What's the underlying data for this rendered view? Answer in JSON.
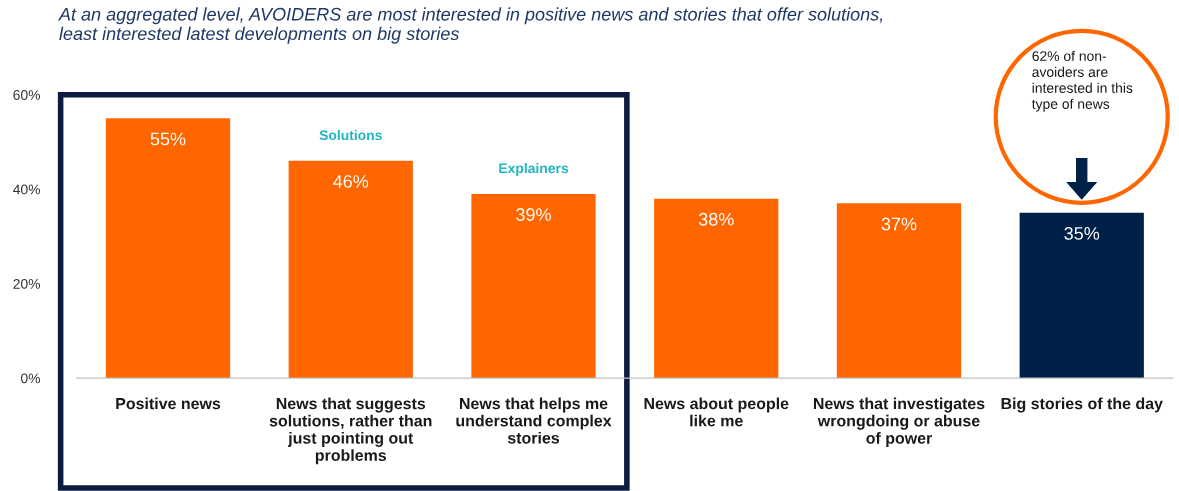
{
  "chart_data": {
    "type": "bar",
    "title": "At an aggregated level, AVOIDERS are most interested in positive news and stories that offer solutions,\nleast interested latest developments on big stories",
    "categories": [
      "Positive news",
      "News that suggests\nsolutions, rather than\njust pointing out\nproblems",
      "News that helps me\nunderstand complex\nstories",
      "News about people\nlike me",
      "News that investigates\nwrongdoing or abuse\nof power",
      "Big stories of the day"
    ],
    "values": [
      55,
      46,
      39,
      38,
      37,
      35
    ],
    "colors": [
      "#ff6600",
      "#ff6600",
      "#ff6600",
      "#ff6600",
      "#ff6600",
      "#002147"
    ],
    "value_labels": [
      "55%",
      "46%",
      "39%",
      "38%",
      "37%",
      "35%"
    ],
    "ylim": [
      0,
      60
    ],
    "yticks": [
      {
        "value": 0,
        "label": "0%"
      },
      {
        "value": 20,
        "label": "20%"
      },
      {
        "value": 40,
        "label": "40%"
      },
      {
        "value": 60,
        "label": "60%"
      }
    ],
    "grid": false,
    "legend": false,
    "annotations": [
      "Solutions",
      "Explainers",
      "62% of non-\navoiders are\ninterested in this\ntype of news"
    ]
  }
}
